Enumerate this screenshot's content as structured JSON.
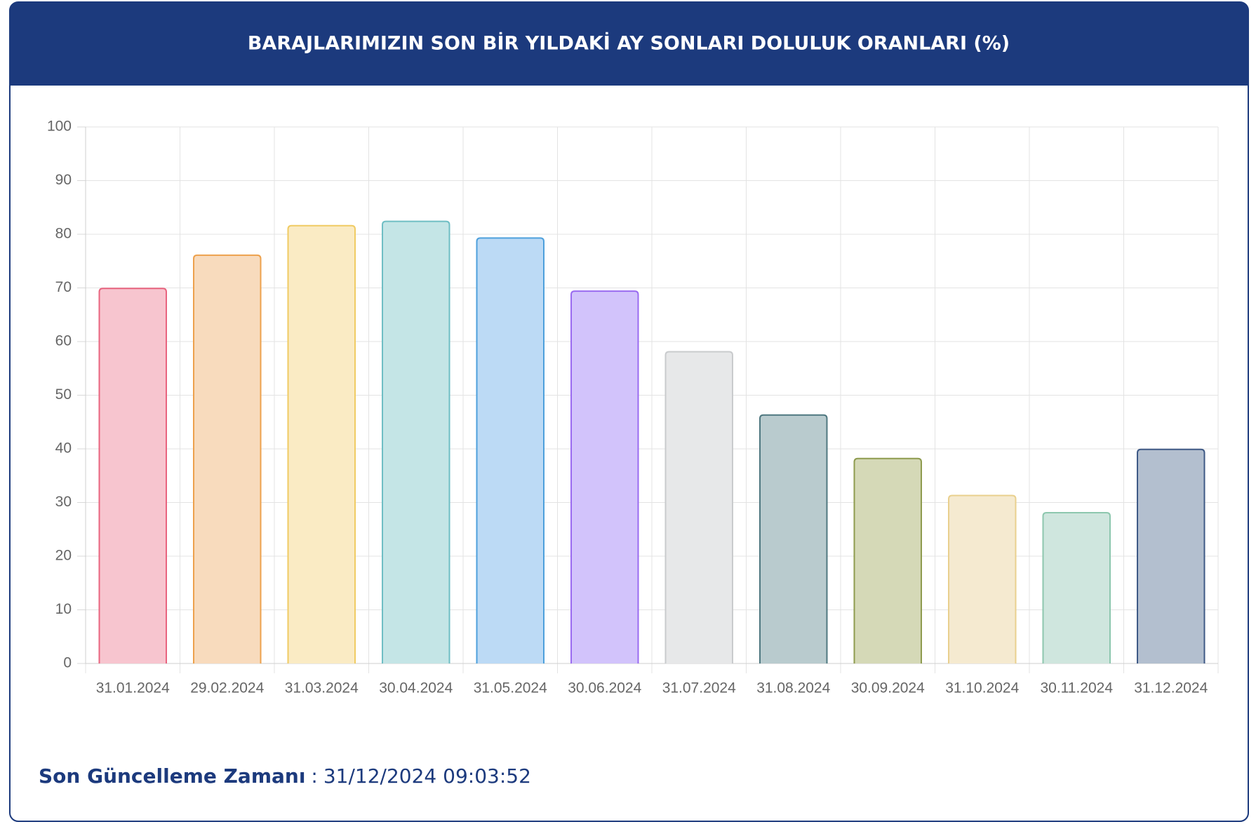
{
  "chart_data": {
    "type": "bar",
    "title": "BARAJLARIMIZIN SON BİR YILDAKİ AY SONLARI DOLULUK ORANLARI (%)",
    "categories": [
      "31.01.2024",
      "29.02.2024",
      "31.03.2024",
      "30.04.2024",
      "31.05.2024",
      "30.06.2024",
      "31.07.2024",
      "31.08.2024",
      "30.09.2024",
      "31.10.2024",
      "30.11.2024",
      "31.12.2024"
    ],
    "values": [
      69.9,
      76.1,
      81.6,
      82.4,
      79.3,
      69.4,
      58.1,
      46.3,
      38.2,
      31.3,
      28.1,
      39.9
    ],
    "colors": [
      "#f7c5cf",
      "#f8dbbd",
      "#faebc4",
      "#c4e5e6",
      "#bcdaf5",
      "#d2c3fb",
      "#e7e8e9",
      "#b9cbce",
      "#d5d9b7",
      "#f5ead0",
      "#cfe6de",
      "#b3bfcf"
    ],
    "border_colors": [
      "#e8647f",
      "#eda14d",
      "#f0cb63",
      "#6fbec4",
      "#4ea0dc",
      "#9a6bf0",
      "#c9cbcd",
      "#4f7880",
      "#8e9b4f",
      "#e9d08e",
      "#8dc7ae",
      "#3f5a86"
    ],
    "ylim": [
      0,
      100
    ],
    "yticks": [
      0,
      10,
      20,
      30,
      40,
      50,
      60,
      70,
      80,
      90,
      100
    ],
    "grid": true
  },
  "footer": {
    "label": "Son Güncelleme Zamanı",
    "separator": ":",
    "value": "31/12/2024 09:03:52"
  }
}
